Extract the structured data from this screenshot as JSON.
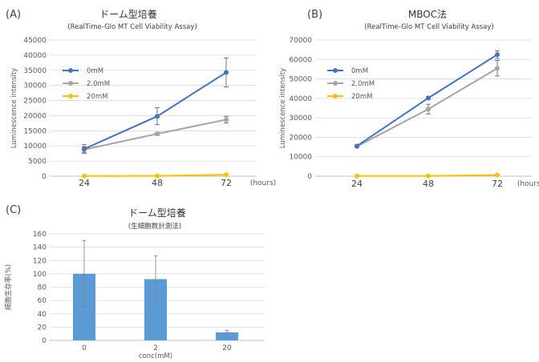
{
  "chart_data": [
    {
      "type": "line",
      "panel": "(A)",
      "title": "ドーム型培養",
      "subtitle": "(RealTime-Glo MT Cell Viability Assay)",
      "ylabel": "Luminescence intensity",
      "xunit": "(hours)",
      "x": [
        "24",
        "48",
        "72"
      ],
      "ylim": [
        0,
        45000
      ],
      "yticks": [
        0,
        5000,
        10000,
        15000,
        20000,
        25000,
        30000,
        35000,
        40000,
        45000
      ],
      "grid": true,
      "legend_position": "top-left",
      "series": [
        {
          "name": "0mM",
          "color": "#4472C4",
          "values": [
            9000,
            19800,
            34300
          ],
          "errors": [
            1500,
            2800,
            4800
          ]
        },
        {
          "name": "2.0mM",
          "color": "#A5A5A5",
          "values": [
            8800,
            14000,
            18700
          ],
          "errors": [
            900,
            500,
            1100
          ]
        },
        {
          "name": "20mM",
          "color": "#FFC000",
          "values": [
            50,
            100,
            500
          ],
          "errors": [
            0,
            0,
            0
          ]
        }
      ]
    },
    {
      "type": "line",
      "panel": "(B)",
      "title": "MBOC法",
      "subtitle": "(RealTime-Glo MT Cell Viability Assay)",
      "ylabel": "Luminescence intensity",
      "xunit": "(hours)",
      "x": [
        "24",
        "48",
        "72"
      ],
      "ylim": [
        0,
        70000
      ],
      "yticks": [
        0,
        10000,
        20000,
        30000,
        40000,
        50000,
        60000,
        70000
      ],
      "grid": true,
      "legend_position": "top-left",
      "series": [
        {
          "name": "0mM",
          "color": "#4472C4",
          "values": [
            15500,
            40200,
            62500
          ],
          "errors": [
            500,
            700,
            2000
          ]
        },
        {
          "name": "2.0mM",
          "color": "#A5A5A5",
          "values": [
            15300,
            34500,
            55500
          ],
          "errors": [
            400,
            2500,
            4000
          ]
        },
        {
          "name": "20mM",
          "color": "#FFC000",
          "values": [
            100,
            100,
            600
          ],
          "errors": [
            0,
            0,
            0
          ]
        }
      ]
    },
    {
      "type": "bar",
      "panel": "(C)",
      "title": "ドーム型培養",
      "subtitle": "(生細胞数計測法)",
      "ylabel": "細胞生存率(%)",
      "xlabel": "conc(mM)",
      "categories": [
        "0",
        "2",
        "20"
      ],
      "values": [
        100,
        92,
        12
      ],
      "errors": [
        50,
        35,
        3
      ],
      "color": "#5B9BD5",
      "ylim": [
        0,
        160
      ],
      "yticks": [
        0,
        20,
        40,
        60,
        80,
        100,
        120,
        140,
        160
      ],
      "grid": true
    }
  ]
}
